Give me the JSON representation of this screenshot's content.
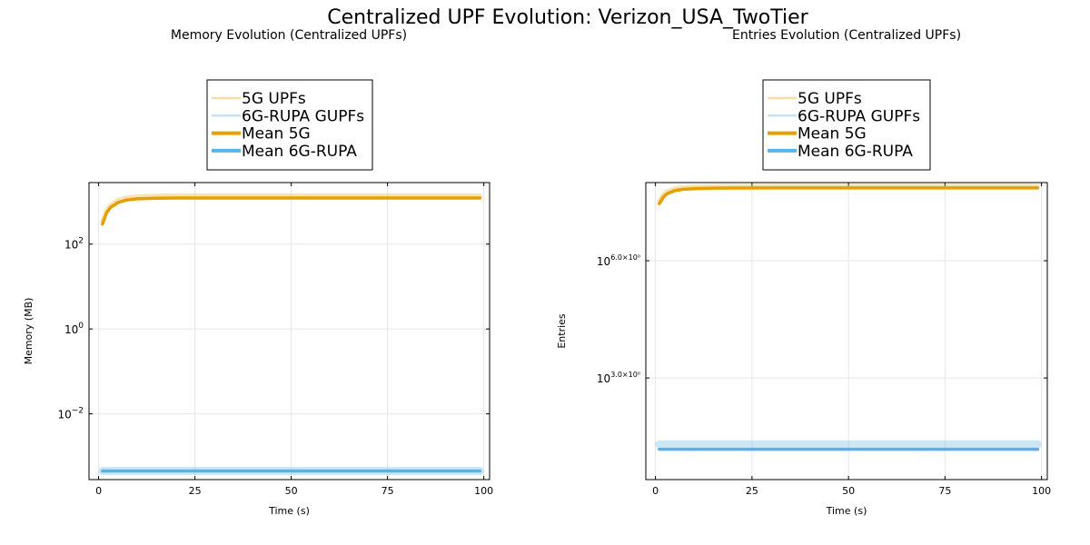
{
  "figure": {
    "title": "Centralized UPF Evolution: Verizon_USA_TwoTier"
  },
  "chart_data": [
    {
      "type": "line",
      "title": "Memory Evolution (Centralized UPFs)",
      "xlabel": "Time (s)",
      "ylabel": "Memory (MB)",
      "xlim": [
        -2.5,
        101.5
      ],
      "xticks": [
        0,
        25,
        50,
        75,
        100
      ],
      "yscale": "log",
      "ylim_log10": [
        -3.55,
        3.45
      ],
      "yticks": [
        {
          "value": 100,
          "label": "10",
          "exponent": "2"
        },
        {
          "value": 1,
          "label": "10",
          "exponent": "0"
        },
        {
          "value": 0.01,
          "label": "10",
          "exponent": "−2"
        }
      ],
      "grid": true,
      "legend_placement": "top-center (outside)",
      "legend": [
        "5G UPFs",
        "6G-RUPA GUPFs",
        "Mean 5G",
        "Mean 6G-RUPA"
      ],
      "colors": {
        "5g": "#e69f00",
        "6g": "#56b4e9"
      },
      "series": [
        {
          "name": "5G UPFs",
          "x": [
            1,
            2,
            3,
            5,
            7,
            10,
            15,
            20,
            30,
            50,
            99
          ],
          "y": [
            344,
            605,
            808,
            1077,
            1218,
            1314,
            1360,
            1370,
            1373,
            1373,
            1373
          ]
        },
        {
          "name": "6G-RUPA GUPFs",
          "x": [
            1,
            99
          ],
          "y": [
            0.00045,
            0.00045
          ]
        },
        {
          "name": "Mean 5G",
          "x": [
            1,
            2,
            3,
            5,
            7,
            10,
            15,
            20,
            30,
            50,
            99
          ],
          "y": [
            297,
            535,
            720,
            954,
            1082,
            1168,
            1210,
            1218,
            1220,
            1220,
            1220
          ]
        },
        {
          "name": "Mean 6G-RUPA",
          "x": [
            1,
            99
          ],
          "y": [
            0.00045,
            0.00045
          ]
        }
      ]
    },
    {
      "type": "line",
      "title": "Entries Evolution (Centralized UPFs)",
      "xlabel": "Time (s)",
      "ylabel": "Entries",
      "xlim": [
        -2.5,
        101.5
      ],
      "xticks": [
        0,
        25,
        50,
        75,
        100
      ],
      "yscale": "log",
      "ylim_log10": [
        0.4,
        8.0
      ],
      "yticks": [
        {
          "value": 1000000,
          "label": "10",
          "exponent": "6.0×10⁰"
        },
        {
          "value": 1000,
          "label": "10",
          "exponent": "3.0×10⁰"
        }
      ],
      "grid": true,
      "legend_placement": "top-center (outside)",
      "legend": [
        "5G UPFs",
        "6G-RUPA GUPFs",
        "Mean 5G",
        "Mean 6G-RUPA"
      ],
      "colors": {
        "5g": "#e69f00",
        "6g": "#56b4e9"
      },
      "series": [
        {
          "name": "5G UPFs",
          "x": [
            1,
            2,
            3,
            5,
            7,
            10,
            15,
            20,
            30,
            50,
            99
          ],
          "y": [
            33000000,
            48000000,
            58000000,
            70000000,
            75000000,
            78000000,
            80000000,
            80500000,
            81000000,
            81000000,
            81000000
          ]
        },
        {
          "name": "6G-RUPA GUPFs",
          "x": [
            1,
            99
          ],
          "y": [
            20,
            20
          ]
        },
        {
          "name": "Mean 5G",
          "x": [
            1,
            2,
            3,
            5,
            7,
            10,
            15,
            20,
            30,
            50,
            99
          ],
          "y": [
            29000000,
            42000000,
            52000000,
            62000000,
            67000000,
            70000000,
            72000000,
            72500000,
            73000000,
            73000000,
            73000000
          ]
        },
        {
          "name": "Mean 6G-RUPA",
          "x": [
            1,
            99
          ],
          "y": [
            15,
            15
          ]
        }
      ]
    }
  ]
}
